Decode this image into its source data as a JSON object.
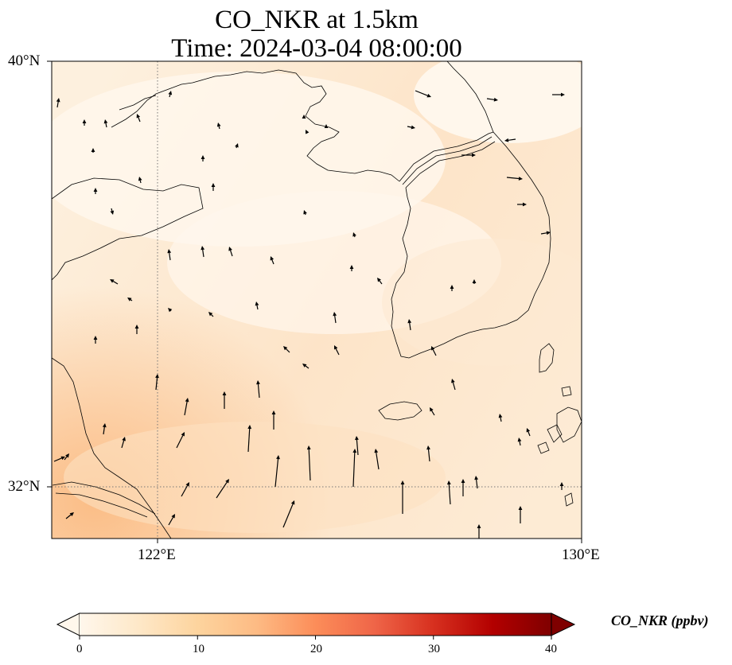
{
  "title": {
    "line1": "CO_NKR at 1.5km",
    "line2": "Time: 2024-03-04 08:00:00"
  },
  "map": {
    "extent": {
      "lon": [
        118.0,
        130.0
      ],
      "lat": [
        31.0,
        40.0
      ]
    },
    "lon_ticks": [
      {
        "value": 122,
        "label": "122°E"
      },
      {
        "value": 130,
        "label": "130°E"
      }
    ],
    "lat_ticks": [
      {
        "value": 40,
        "label": "40°N"
      },
      {
        "value": 32,
        "label": "32°N"
      }
    ],
    "gridlines": {
      "lon": [
        122
      ],
      "lat": [
        32
      ],
      "style": "dotted"
    },
    "field": {
      "variable": "CO_NKR",
      "range_shown": [
        0,
        12
      ]
    },
    "wind_vectors": "present"
  },
  "colorbar": {
    "title": "CO_NKR (ppbv)",
    "min": 0,
    "max": 40,
    "ticks": [
      {
        "value": 0,
        "label": "0"
      },
      {
        "value": 10,
        "label": "10"
      },
      {
        "value": 20,
        "label": "20"
      },
      {
        "value": 30,
        "label": "30"
      },
      {
        "value": 40,
        "label": "40"
      }
    ],
    "colormap": "OrRd",
    "colors": [
      "#fff7ec",
      "#fee8c8",
      "#fdd49e",
      "#fdbb84",
      "#fc8d59",
      "#ef6548",
      "#d7301f",
      "#b30000",
      "#7f0000"
    ],
    "extend": "both"
  }
}
